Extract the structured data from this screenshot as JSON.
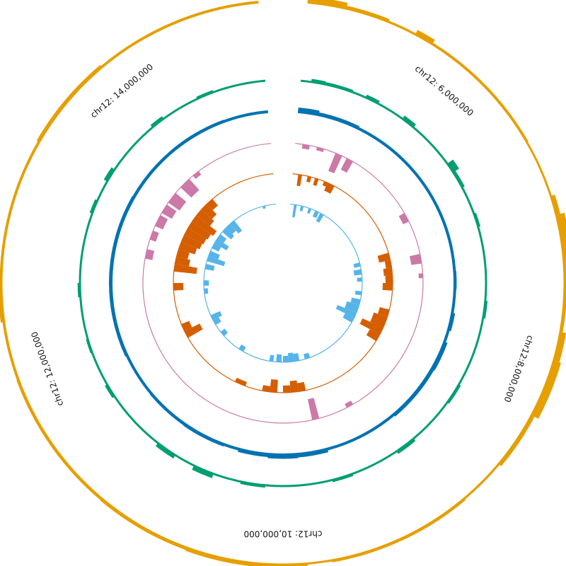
{
  "chart_data": {
    "type": "circular-histogram",
    "title": "",
    "chromosome": "chr12",
    "angle_range_deg": [
      5,
      355
    ],
    "position_range": [
      5000000,
      15000000
    ],
    "position_labels": [
      {
        "pos": 6000000,
        "text": "chr12: 6,000,000"
      },
      {
        "pos": 8000000,
        "text": "chr12:8,000,000"
      },
      {
        "pos": 10000000,
        "text": "chr12: 10,000,000"
      },
      {
        "pos": 12000000,
        "text": "chr12: 12,000,000"
      },
      {
        "pos": 14000000,
        "text": "chr12: 14,000,000"
      }
    ],
    "tracks": [
      {
        "id": "track-1",
        "color": "#E69F00",
        "direction": "out",
        "segments": [
          {
            "from": 5,
            "to": 13,
            "value": 0.7
          },
          {
            "from": 13,
            "to": 22,
            "value": 0.35
          },
          {
            "from": 22,
            "to": 28,
            "value": 0.15
          },
          {
            "from": 28,
            "to": 32,
            "value": 0.6
          },
          {
            "from": 32,
            "to": 60,
            "value": 0.2
          },
          {
            "from": 60,
            "to": 72,
            "value": 0.1
          },
          {
            "from": 72,
            "to": 76,
            "value": 0.5
          },
          {
            "from": 76,
            "to": 88,
            "value": 1.0
          },
          {
            "from": 88,
            "to": 94,
            "value": 0.7
          },
          {
            "from": 94,
            "to": 100,
            "value": 0.3
          },
          {
            "from": 100,
            "to": 106,
            "value": 0.7
          },
          {
            "from": 106,
            "to": 118,
            "value": 0.9
          },
          {
            "from": 118,
            "to": 130,
            "value": 0.4
          },
          {
            "from": 130,
            "to": 140,
            "value": 0.15
          },
          {
            "from": 140,
            "to": 170,
            "value": 0.25
          },
          {
            "from": 170,
            "to": 174,
            "value": 0.1
          },
          {
            "from": 175,
            "to": 184,
            "value": 0.6
          },
          {
            "from": 184,
            "to": 200,
            "value": 0.4
          },
          {
            "from": 200,
            "to": 220,
            "value": 0.3
          },
          {
            "from": 220,
            "to": 250,
            "value": 0.25
          },
          {
            "from": 250,
            "to": 262,
            "value": 0.2
          },
          {
            "from": 262,
            "to": 272,
            "value": 0.4
          },
          {
            "from": 272,
            "to": 300,
            "value": 0.2
          },
          {
            "from": 300,
            "to": 320,
            "value": 0.35
          },
          {
            "from": 320,
            "to": 355,
            "value": 0.2
          }
        ]
      },
      {
        "id": "track-2",
        "color": "#009E73",
        "direction": "out",
        "segments": [
          {
            "from": 8,
            "to": 12,
            "value": 0.4
          },
          {
            "from": 12,
            "to": 20,
            "value": 0.3
          },
          {
            "from": 24,
            "to": 28,
            "value": 0.4
          },
          {
            "from": 36,
            "to": 40,
            "value": 0.5
          },
          {
            "from": 54,
            "to": 57,
            "value": 0.9
          },
          {
            "from": 57,
            "to": 62,
            "value": 0.35
          },
          {
            "from": 70,
            "to": 74,
            "value": 0.3
          },
          {
            "from": 95,
            "to": 100,
            "value": 0.3
          },
          {
            "from": 120,
            "to": 126,
            "value": 0.3
          },
          {
            "from": 140,
            "to": 146,
            "value": 0.4
          },
          {
            "from": 160,
            "to": 166,
            "value": 0.3
          },
          {
            "from": 185,
            "to": 192,
            "value": 0.3
          },
          {
            "from": 200,
            "to": 206,
            "value": 0.6
          },
          {
            "from": 212,
            "to": 218,
            "value": 0.5
          },
          {
            "from": 236,
            "to": 240,
            "value": 0.35
          },
          {
            "from": 250,
            "to": 254,
            "value": 0.25
          },
          {
            "from": 266,
            "to": 270,
            "value": 0.3
          },
          {
            "from": 290,
            "to": 294,
            "value": 0.35
          },
          {
            "from": 300,
            "to": 304,
            "value": 0.5
          },
          {
            "from": 320,
            "to": 324,
            "value": 0.4
          },
          {
            "from": 335,
            "to": 340,
            "value": 0.3
          }
        ]
      },
      {
        "id": "track-3",
        "color": "#0072B2",
        "direction": "out",
        "segments": [
          {
            "from": 5,
            "to": 12,
            "value": 0.6
          },
          {
            "from": 12,
            "to": 26,
            "value": 0.35
          },
          {
            "from": 26,
            "to": 80,
            "value": 0.2
          },
          {
            "from": 86,
            "to": 92,
            "value": 0.25
          },
          {
            "from": 100,
            "to": 106,
            "value": 0.4
          },
          {
            "from": 110,
            "to": 120,
            "value": 0.45
          },
          {
            "from": 120,
            "to": 140,
            "value": 0.35
          },
          {
            "from": 140,
            "to": 160,
            "value": 0.2
          },
          {
            "from": 165,
            "to": 175,
            "value": 0.45
          },
          {
            "from": 175,
            "to": 185,
            "value": 0.55
          },
          {
            "from": 185,
            "to": 195,
            "value": 0.4
          },
          {
            "from": 200,
            "to": 215,
            "value": 0.3
          },
          {
            "from": 215,
            "to": 230,
            "value": 0.25
          },
          {
            "from": 245,
            "to": 300,
            "value": 0.3
          },
          {
            "from": 300,
            "to": 340,
            "value": 0.25
          },
          {
            "from": 340,
            "to": 352,
            "value": 0.2
          }
        ]
      },
      {
        "id": "track-4",
        "color": "#CC79A7",
        "direction": "in",
        "segments": [
          {
            "from": 8,
            "to": 11,
            "value": 0.2
          },
          {
            "from": 14,
            "to": 17,
            "value": 0.15
          },
          {
            "from": 22,
            "to": 25,
            "value": 0.9
          },
          {
            "from": 27,
            "to": 30,
            "value": 0.6
          },
          {
            "from": 60,
            "to": 64,
            "value": 0.3
          },
          {
            "from": 78,
            "to": 82,
            "value": 0.5
          },
          {
            "from": 86,
            "to": 88,
            "value": 0.2
          },
          {
            "from": 165,
            "to": 168,
            "value": 1.0
          },
          {
            "from": 150,
            "to": 153,
            "value": 0.2
          },
          {
            "from": 280,
            "to": 284,
            "value": 0.35
          },
          {
            "from": 288,
            "to": 292,
            "value": 0.3
          },
          {
            "from": 294,
            "to": 299,
            "value": 0.4
          },
          {
            "from": 300,
            "to": 304,
            "value": 0.55
          },
          {
            "from": 305,
            "to": 310,
            "value": 0.65
          },
          {
            "from": 313,
            "to": 318,
            "value": 0.7
          },
          {
            "from": 320,
            "to": 323,
            "value": 0.2
          }
        ]
      },
      {
        "id": "track-5",
        "color": "#D55E00",
        "direction": "in",
        "segments": [
          {
            "from": 8,
            "to": 10,
            "value": 0.4
          },
          {
            "from": 13,
            "to": 15,
            "value": 0.2
          },
          {
            "from": 17,
            "to": 19,
            "value": 0.25
          },
          {
            "from": 22,
            "to": 24,
            "value": 0.15
          },
          {
            "from": 24,
            "to": 28,
            "value": 0.3
          },
          {
            "from": 74,
            "to": 78,
            "value": 0.4
          },
          {
            "from": 78,
            "to": 82,
            "value": 0.2
          },
          {
            "from": 82,
            "to": 86,
            "value": 0.3
          },
          {
            "from": 86,
            "to": 90,
            "value": 0.25
          },
          {
            "from": 90,
            "to": 94,
            "value": 0.35
          },
          {
            "from": 104,
            "to": 108,
            "value": 0.35
          },
          {
            "from": 108,
            "to": 114,
            "value": 0.5
          },
          {
            "from": 114,
            "to": 118,
            "value": 0.8
          },
          {
            "from": 118,
            "to": 122,
            "value": 0.4
          },
          {
            "from": 168,
            "to": 172,
            "value": 0.3
          },
          {
            "from": 172,
            "to": 176,
            "value": 0.4
          },
          {
            "from": 176,
            "to": 180,
            "value": 0.25
          },
          {
            "from": 183,
            "to": 187,
            "value": 0.45
          },
          {
            "from": 187,
            "to": 191,
            "value": 0.2
          },
          {
            "from": 200,
            "to": 206,
            "value": 0.15
          },
          {
            "from": 240,
            "to": 244,
            "value": 0.6
          },
          {
            "from": 244,
            "to": 248,
            "value": 0.3
          },
          {
            "from": 266,
            "to": 270,
            "value": 0.35
          },
          {
            "from": 276,
            "to": 280,
            "value": 0.8
          },
          {
            "from": 280,
            "to": 284,
            "value": 0.5
          },
          {
            "from": 284,
            "to": 288,
            "value": 0.4
          },
          {
            "from": 288,
            "to": 292,
            "value": 0.6
          },
          {
            "from": 292,
            "to": 296,
            "value": 0.7
          },
          {
            "from": 296,
            "to": 300,
            "value": 0.75
          },
          {
            "from": 300,
            "to": 304,
            "value": 0.8
          },
          {
            "from": 304,
            "to": 308,
            "value": 0.9
          },
          {
            "from": 308,
            "to": 312,
            "value": 0.6
          },
          {
            "from": 312,
            "to": 316,
            "value": 0.5
          },
          {
            "from": 316,
            "to": 320,
            "value": 0.3
          }
        ]
      },
      {
        "id": "track-6",
        "color": "#56B4E9",
        "direction": "in",
        "segments": [
          {
            "from": 8,
            "to": 10,
            "value": 0.5
          },
          {
            "from": 13,
            "to": 15,
            "value": 0.2
          },
          {
            "from": 19,
            "to": 21,
            "value": 0.2
          },
          {
            "from": 24,
            "to": 27,
            "value": 0.25
          },
          {
            "from": 28,
            "to": 31,
            "value": 0.35
          },
          {
            "from": 75,
            "to": 78,
            "value": 0.25
          },
          {
            "from": 80,
            "to": 84,
            "value": 0.3
          },
          {
            "from": 86,
            "to": 89,
            "value": 0.2
          },
          {
            "from": 96,
            "to": 99,
            "value": 0.25
          },
          {
            "from": 102,
            "to": 106,
            "value": 0.35
          },
          {
            "from": 106,
            "to": 112,
            "value": 0.5
          },
          {
            "from": 112,
            "to": 116,
            "value": 0.8
          },
          {
            "from": 116,
            "to": 120,
            "value": 0.4
          },
          {
            "from": 160,
            "to": 164,
            "value": 0.2
          },
          {
            "from": 168,
            "to": 172,
            "value": 0.3
          },
          {
            "from": 172,
            "to": 176,
            "value": 0.35
          },
          {
            "from": 176,
            "to": 180,
            "value": 0.25
          },
          {
            "from": 181,
            "to": 185,
            "value": 0.3
          },
          {
            "from": 187,
            "to": 190,
            "value": 0.25
          },
          {
            "from": 210,
            "to": 214,
            "value": 0.2
          },
          {
            "from": 228,
            "to": 232,
            "value": 0.2
          },
          {
            "from": 238,
            "to": 242,
            "value": 0.25
          },
          {
            "from": 242,
            "to": 246,
            "value": 0.4
          },
          {
            "from": 262,
            "to": 266,
            "value": 0.15
          },
          {
            "from": 268,
            "to": 272,
            "value": 0.2
          },
          {
            "from": 280,
            "to": 284,
            "value": 0.35
          },
          {
            "from": 286,
            "to": 290,
            "value": 0.7
          },
          {
            "from": 290,
            "to": 294,
            "value": 0.4
          },
          {
            "from": 296,
            "to": 300,
            "value": 0.3
          },
          {
            "from": 300,
            "to": 304,
            "value": 0.55
          },
          {
            "from": 304,
            "to": 308,
            "value": 0.3
          },
          {
            "from": 310,
            "to": 314,
            "value": 0.45
          },
          {
            "from": 314,
            "to": 318,
            "value": 0.35
          },
          {
            "from": 318,
            "to": 322,
            "value": 0.5
          },
          {
            "from": 345,
            "to": 347,
            "value": 0.1
          }
        ]
      }
    ]
  }
}
